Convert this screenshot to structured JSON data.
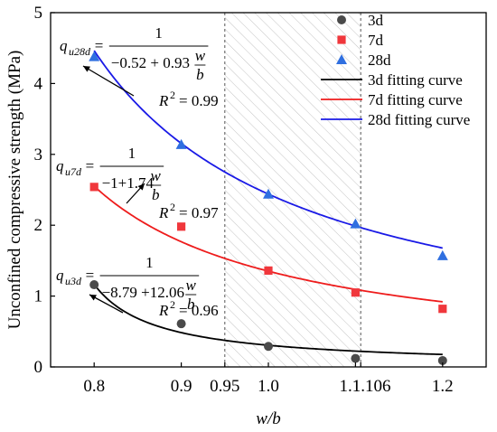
{
  "chart_data": {
    "type": "scatter",
    "xlabel": "w/b",
    "ylabel": "Unconfined compressive strength (MPa)",
    "xlim": [
      0.75,
      1.25
    ],
    "ylim": [
      0,
      5
    ],
    "x_ticks": [
      0.8,
      0.9,
      0.95,
      1.0,
      1.1,
      1.106,
      1.2
    ],
    "x_tick_labels": [
      "0.8",
      "0.9",
      "0.95",
      "1.0",
      "1.1",
      "1.106",
      "1.2"
    ],
    "y_ticks": [
      0,
      1,
      2,
      3,
      4,
      5
    ],
    "y_tick_labels": [
      "0",
      "1",
      "2",
      "3",
      "4",
      "5"
    ],
    "grid": false,
    "legend_position": "top-right",
    "shaded_region": {
      "x_start": 0.95,
      "x_end": 1.106,
      "pattern": "diagonal-hatch"
    },
    "series": [
      {
        "name": "3d",
        "marker": "circle",
        "color": "#4a4a4a",
        "x": [
          0.8,
          0.9,
          1.0,
          1.1,
          1.2
        ],
        "y": [
          1.16,
          0.61,
          0.29,
          0.12,
          0.09
        ]
      },
      {
        "name": "7d",
        "marker": "square",
        "color": "#f0373c",
        "x": [
          0.8,
          0.9,
          1.0,
          1.1,
          1.2
        ],
        "y": [
          2.54,
          1.98,
          1.36,
          1.05,
          0.82
        ]
      },
      {
        "name": "28d",
        "marker": "triangle",
        "color": "#2f6fe0",
        "x": [
          0.8,
          0.9,
          1.0,
          1.1,
          1.2
        ],
        "y": [
          4.38,
          3.14,
          2.44,
          2.02,
          1.57
        ]
      }
    ],
    "fit_curves": [
      {
        "name": "3d fitting curve",
        "color": "#000000",
        "a": -8.79,
        "b": 12.06,
        "x_range": [
          0.8,
          1.2
        ]
      },
      {
        "name": "7d fitting curve",
        "color": "#ee1c1c",
        "a": -1,
        "b": 1.74,
        "x_range": [
          0.8,
          1.2
        ]
      },
      {
        "name": "28d fitting curve",
        "color": "#1a1ae6",
        "a": -0.52,
        "b": 0.93,
        "x_range": [
          0.8,
          1.2
        ]
      }
    ],
    "annotations": [
      {
        "q_main": "q",
        "q_sub": "u28d",
        "numerator": "1",
        "denominator_const": "−0.52 + 0.93",
        "w": "w",
        "b": "b",
        "r2": "= 0.99"
      },
      {
        "q_main": "q",
        "q_sub": "u7d",
        "numerator": "1",
        "denominator_const": "−1+1.74",
        "w": "w",
        "b": "b",
        "r2": "= 0.97"
      },
      {
        "q_main": "q",
        "q_sub": "u3d",
        "numerator": "1",
        "denominator_const": "−8.79 +12.06",
        "w": "w",
        "b": "b",
        "r2": "= 0.96"
      }
    ],
    "r2_label": "R",
    "r2_sup": "2"
  }
}
